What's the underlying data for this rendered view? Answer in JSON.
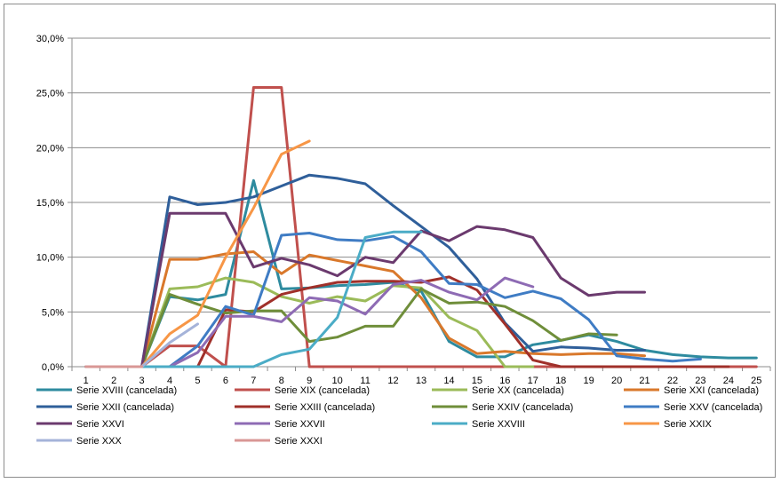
{
  "chart_data": {
    "type": "line",
    "title": "",
    "xlabel": "",
    "ylabel": "",
    "categories": [
      "1",
      "2",
      "3",
      "4",
      "5",
      "6",
      "7",
      "8",
      "9",
      "10",
      "11",
      "12",
      "13",
      "14",
      "15",
      "16",
      "17",
      "18",
      "19",
      "20",
      "21",
      "22",
      "23",
      "24",
      "25"
    ],
    "ylim": [
      0,
      0.3
    ],
    "y_ticks": [
      0,
      0.05,
      0.1,
      0.15,
      0.2,
      0.25,
      0.3
    ],
    "y_tick_labels": [
      "0,0%",
      "5,0%",
      "10,0%",
      "15,0%",
      "20,0%",
      "25,0%",
      "30,0%"
    ],
    "grid": "horizontal",
    "legend_position": "bottom",
    "series": [
      {
        "name": "Serie XVIII (cancelada)",
        "color": "#2e8b9f",
        "values": [
          0,
          0,
          0,
          0.064,
          0.061,
          0.066,
          0.17,
          0.071,
          0.072,
          0.074,
          0.075,
          0.077,
          0.069,
          0.023,
          0.009,
          0.009,
          0.02,
          0.024,
          0.029,
          0.023,
          0.015,
          0.011,
          0.009,
          0.008,
          0.008
        ]
      },
      {
        "name": "Serie XIX (cancelada)",
        "color": "#c0504d",
        "values": [
          0,
          0,
          0,
          0.019,
          0.019,
          0,
          0.255,
          0.255,
          0,
          0,
          0,
          0,
          0,
          0,
          0,
          0,
          0,
          0,
          0,
          0,
          0,
          0,
          0,
          0,
          0
        ]
      },
      {
        "name": "Serie XX (cancelada)",
        "color": "#9bbb59",
        "values": [
          0,
          0,
          0,
          0.071,
          0.073,
          0.081,
          0.077,
          0.064,
          0.058,
          0.064,
          0.06,
          0.074,
          0.072,
          0.045,
          0.033,
          0,
          0,
          null,
          null,
          null,
          null,
          null,
          null,
          null,
          null
        ]
      },
      {
        "name": "Serie XXI (cancelada)",
        "color": "#d9782b",
        "values": [
          0,
          0,
          0,
          0.098,
          0.098,
          0.103,
          0.105,
          0.085,
          0.102,
          0.097,
          0.092,
          0.087,
          0.063,
          0.026,
          0.012,
          0.014,
          0.012,
          0.011,
          0.012,
          0.012,
          0.01,
          null,
          null,
          null,
          null
        ]
      },
      {
        "name": "Serie XXII (cancelada)",
        "color": "#2f5f9a",
        "values": [
          0,
          0,
          0,
          0.155,
          0.148,
          0.15,
          0.155,
          0.165,
          0.175,
          0.172,
          0.167,
          0.147,
          0.128,
          0.109,
          0.08,
          0.04,
          0.014,
          0.018,
          0.017,
          0.015,
          0.015,
          null,
          null,
          null,
          null
        ]
      },
      {
        "name": "Serie XXIII (cancelada)",
        "color": "#a0302a",
        "values": [
          0,
          0,
          0,
          0,
          0,
          0.052,
          0.05,
          0.066,
          0.072,
          0.077,
          0.078,
          0.078,
          0.077,
          0.082,
          0.07,
          0.039,
          0.006,
          0,
          0,
          0,
          0,
          0,
          0,
          0,
          null
        ]
      },
      {
        "name": "Serie XXIV (cancelada)",
        "color": "#6f8e3a",
        "values": [
          0,
          0,
          0,
          0.066,
          0.057,
          0.049,
          0.051,
          0.051,
          0.023,
          0.027,
          0.037,
          0.037,
          0.071,
          0.058,
          0.059,
          0.055,
          0.042,
          0.024,
          0.03,
          0.029,
          null,
          null,
          null,
          null,
          null
        ]
      },
      {
        "name": "Serie XXV (cancelada)",
        "color": "#3f7cc4",
        "values": [
          0,
          0,
          0,
          0,
          0.019,
          0.055,
          0.047,
          0.12,
          0.122,
          0.116,
          0.115,
          0.119,
          0.105,
          0.076,
          0.075,
          0.063,
          0.069,
          0.062,
          0.043,
          0.01,
          0.007,
          0.005,
          0.007,
          null,
          null
        ]
      },
      {
        "name": "Serie XXVI",
        "color": "#6b3a6e",
        "values": [
          0,
          0,
          0,
          0.14,
          0.14,
          0.14,
          0.091,
          0.099,
          0.093,
          0.083,
          0.1,
          0.095,
          0.124,
          0.115,
          0.128,
          0.125,
          0.118,
          0.081,
          0.065,
          0.068,
          0.068,
          null,
          null,
          null,
          null
        ]
      },
      {
        "name": "Serie XXVII",
        "color": "#8e6bb4",
        "values": [
          0,
          0,
          0,
          0,
          0.013,
          0.046,
          0.046,
          0.041,
          0.063,
          0.06,
          0.048,
          0.075,
          0.079,
          0.068,
          0.061,
          0.081,
          0.073,
          null,
          null,
          null,
          null,
          null,
          null,
          null,
          null
        ]
      },
      {
        "name": "Serie XXVIII",
        "color": "#4bacc6",
        "values": [
          0,
          0,
          0,
          0,
          0,
          0,
          0,
          0.011,
          0.016,
          0.045,
          0.118,
          0.123,
          0.123,
          null,
          null,
          null,
          null,
          null,
          null,
          null,
          null,
          null,
          null,
          null,
          null
        ]
      },
      {
        "name": "Serie XXIX",
        "color": "#f79646",
        "values": [
          0,
          0,
          0,
          0.03,
          0.047,
          0.1,
          0.145,
          0.194,
          0.206,
          null,
          null,
          null,
          null,
          null,
          null,
          null,
          null,
          null,
          null,
          null,
          null,
          null,
          null,
          null,
          null
        ]
      },
      {
        "name": "Serie XXX",
        "color": "#a5b3d9",
        "values": [
          0,
          0,
          0,
          0.022,
          0.039,
          null,
          null,
          null,
          null,
          null,
          null,
          null,
          null,
          null,
          null,
          null,
          null,
          null,
          null,
          null,
          null,
          null,
          null,
          null,
          null
        ]
      },
      {
        "name": "Serie XXXI",
        "color": "#d99795",
        "values": [
          0,
          0,
          0,
          null,
          null,
          null,
          null,
          null,
          null,
          null,
          null,
          null,
          null,
          null,
          null,
          null,
          null,
          null,
          null,
          null,
          null,
          null,
          null,
          null,
          null
        ]
      }
    ]
  }
}
